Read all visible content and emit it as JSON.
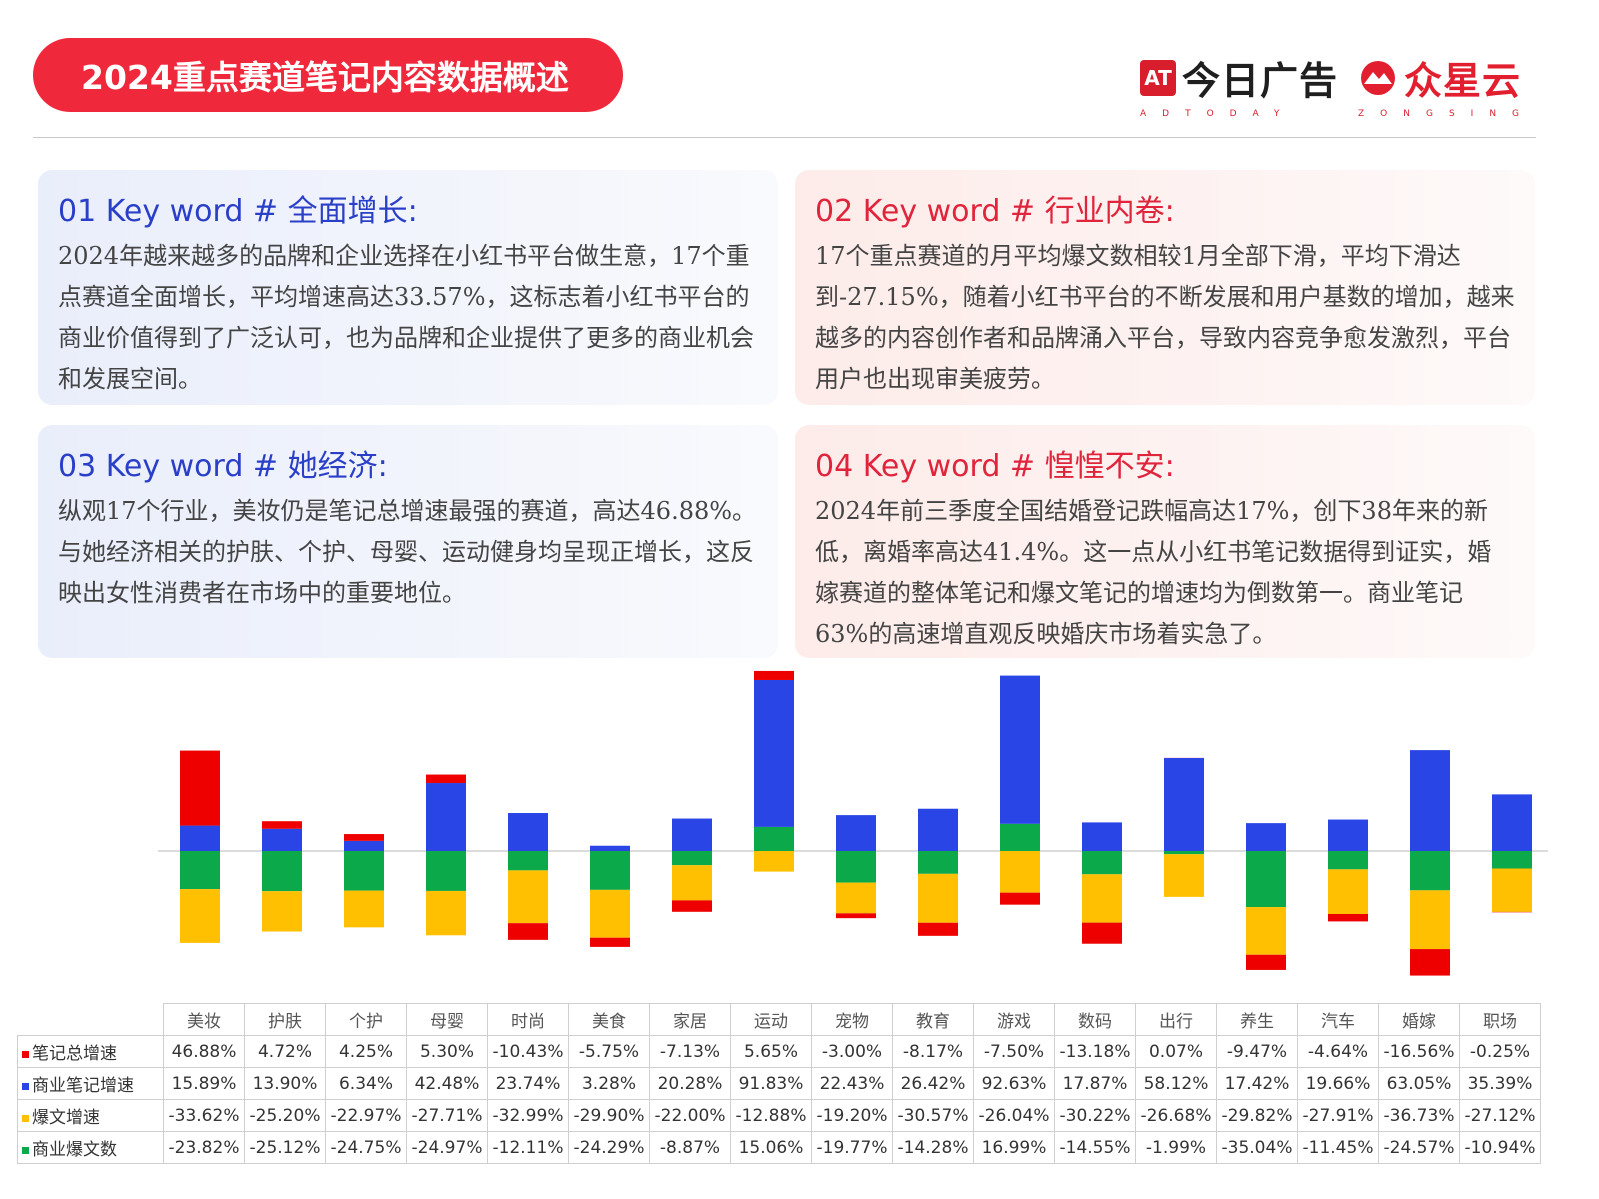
{
  "header": {
    "title": "2024重点赛道笔记内容数据概述",
    "brand1": {
      "logo": "AT",
      "name": "今日广告",
      "sub": "ADTODAY"
    },
    "brand2": {
      "name": "众星云",
      "sub": "ZONGSING"
    }
  },
  "cards": [
    {
      "title": "01 Key word # 全面增长:",
      "text": "2024年越来越多的品牌和企业选择在小红书平台做生意，17个重点赛道全面增长，平均增速高达33.57%，这标志着小红书平台的商业价值得到了广泛认可，也为品牌和企业提供了更多的商业机会和发展空间。"
    },
    {
      "title": "02 Key word # 行业内卷:",
      "text": "17个重点赛道的月平均爆文数相较1月全部下滑，平均下滑达到-27.15%，随着小红书平台的不断发展和用户基数的增加，越来越多的内容创作者和品牌涌入平台，导致内容竞争愈发激烈，平台用户也出现审美疲劳。"
    },
    {
      "title": "03 Key word # 她经济:",
      "text": "纵观17个行业，美妆仍是笔记总增速最强的赛道，高达46.88%。与她经济相关的护肤、个护、母婴、运动健身均呈现正增长，这反映出女性消费者在市场中的重要地位。"
    },
    {
      "title": "04 Key word # 惶惶不安:",
      "text": "2024年前三季度全国结婚登记跌幅高达17%，创下38年来的新低，离婚率高达41.4%。这一点从小红书笔记数据得到证实，婚嫁赛道的整体笔记和爆文笔记的增速均为倒数第一。商业笔记63%的高速增直观反映婚庆市场着实急了。"
    }
  ],
  "chart_data": {
    "type": "bar",
    "stacked": true,
    "categories": [
      "美妆",
      "护肤",
      "个护",
      "母婴",
      "时尚",
      "美食",
      "家居",
      "运动",
      "宠物",
      "教育",
      "游戏",
      "数码",
      "出行",
      "养生",
      "汽车",
      "婚嫁",
      "职场"
    ],
    "series": [
      {
        "name": "笔记总增速",
        "color": "#ee0000",
        "values": [
          46.88,
          4.72,
          4.25,
          5.3,
          -10.43,
          -5.75,
          -7.13,
          5.65,
          -3.0,
          -8.17,
          -7.5,
          -13.18,
          0.07,
          -9.47,
          -4.64,
          -16.56,
          -0.25
        ],
        "labels": [
          "46.88%",
          "4.72%",
          "4.25%",
          "5.30%",
          "-10.43%",
          "-5.75%",
          "-7.13%",
          "5.65%",
          "-3.00%",
          "-8.17%",
          "-7.50%",
          "-13.18%",
          "0.07%",
          "-9.47%",
          "-4.64%",
          "-16.56%",
          "-0.25%"
        ]
      },
      {
        "name": "商业笔记增速",
        "color": "#2a45e6",
        "values": [
          15.89,
          13.9,
          6.34,
          42.48,
          23.74,
          3.28,
          20.28,
          91.83,
          22.43,
          26.42,
          92.63,
          17.87,
          58.12,
          17.42,
          19.66,
          63.05,
          35.39
        ],
        "labels": [
          "15.89%",
          "13.90%",
          "6.34%",
          "42.48%",
          "23.74%",
          "3.28%",
          "20.28%",
          "91.83%",
          "22.43%",
          "26.42%",
          "92.63%",
          "17.87%",
          "58.12%",
          "17.42%",
          "19.66%",
          "63.05%",
          "35.39%"
        ]
      },
      {
        "name": "爆文增速",
        "color": "#fec000",
        "values": [
          -33.62,
          -25.2,
          -22.97,
          -27.71,
          -32.99,
          -29.9,
          -22.0,
          -12.88,
          -19.2,
          -30.57,
          -26.04,
          -30.22,
          -26.68,
          -29.82,
          -27.91,
          -36.73,
          -27.12
        ],
        "labels": [
          "-33.62%",
          "-25.20%",
          "-22.97%",
          "-27.71%",
          "-32.99%",
          "-29.90%",
          "-22.00%",
          "-12.88%",
          "-19.20%",
          "-30.57%",
          "-26.04%",
          "-30.22%",
          "-26.68%",
          "-29.82%",
          "-27.91%",
          "-36.73%",
          "-27.12%"
        ]
      },
      {
        "name": "商业爆文数",
        "color": "#0ca94a",
        "values": [
          -23.82,
          -25.12,
          -24.75,
          -24.97,
          -12.11,
          -24.29,
          -8.87,
          15.06,
          -19.77,
          -14.28,
          16.99,
          -14.55,
          -1.99,
          -35.04,
          -11.45,
          -24.57,
          -10.94
        ],
        "labels": [
          "-23.82%",
          "-25.12%",
          "-24.75%",
          "-24.97%",
          "-12.11%",
          "-24.29%",
          "-8.87%",
          "15.06%",
          "-19.77%",
          "-14.28%",
          "16.99%",
          "-14.55%",
          "-1.99%",
          "-35.04%",
          "-11.45%",
          "-24.57%",
          "-10.94%"
        ]
      }
    ],
    "stack_order": [
      "商业爆文数",
      "商业笔记增速",
      "爆文增速",
      "笔记总增速"
    ],
    "legend": "table-bottom",
    "grid": false
  }
}
